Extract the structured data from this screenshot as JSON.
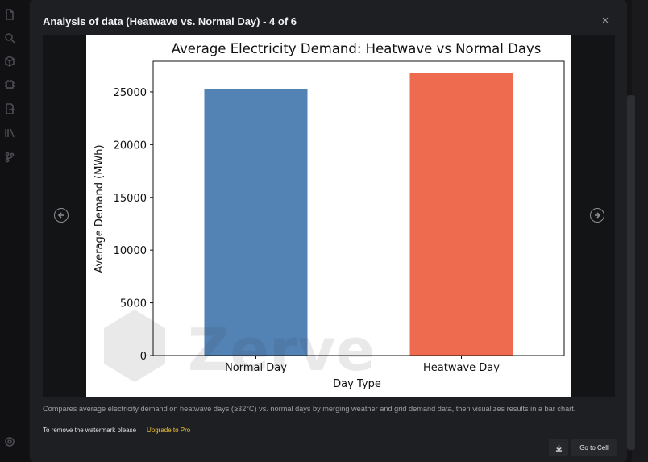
{
  "modal": {
    "title": "Analysis of data (Heatwave vs. Normal Day) - 4 of 6",
    "close_label": "×",
    "caption": "Compares average electricity demand on heatwave days (≥32°C) vs. normal days by merging weather and grid demand data, then visualizes results in a bar chart.",
    "watermark_note": "To remove the watermark please",
    "upgrade_label": "Upgrade to Pro",
    "goto_label": "Go to Cell",
    "watermark_text": "Zerve"
  },
  "icons": {
    "sidebar": [
      "file-icon",
      "search-icon",
      "cube-icon",
      "chip-icon",
      "page-export-icon",
      "library-icon",
      "branch-icon",
      "settings-icon"
    ],
    "prev": "arrow-left-circle-icon",
    "next": "arrow-right-circle-icon",
    "download": "download-icon"
  },
  "colors": {
    "normal_bar": "#5382b5",
    "heatwave_bar": "#ee6b4f",
    "upgrade": "#f0c23a"
  },
  "chart_data": {
    "type": "bar",
    "title": "Average Electricity Demand: Heatwave vs Normal Days",
    "xlabel": "Day Type",
    "ylabel": "Average Demand (MWh)",
    "categories": [
      "Normal Day",
      "Heatwave Day"
    ],
    "values": [
      25300,
      26800
    ],
    "ylim": [
      0,
      27900
    ],
    "yticks": [
      0,
      5000,
      10000,
      15000,
      20000,
      25000
    ],
    "grid": false,
    "legend": "none"
  }
}
